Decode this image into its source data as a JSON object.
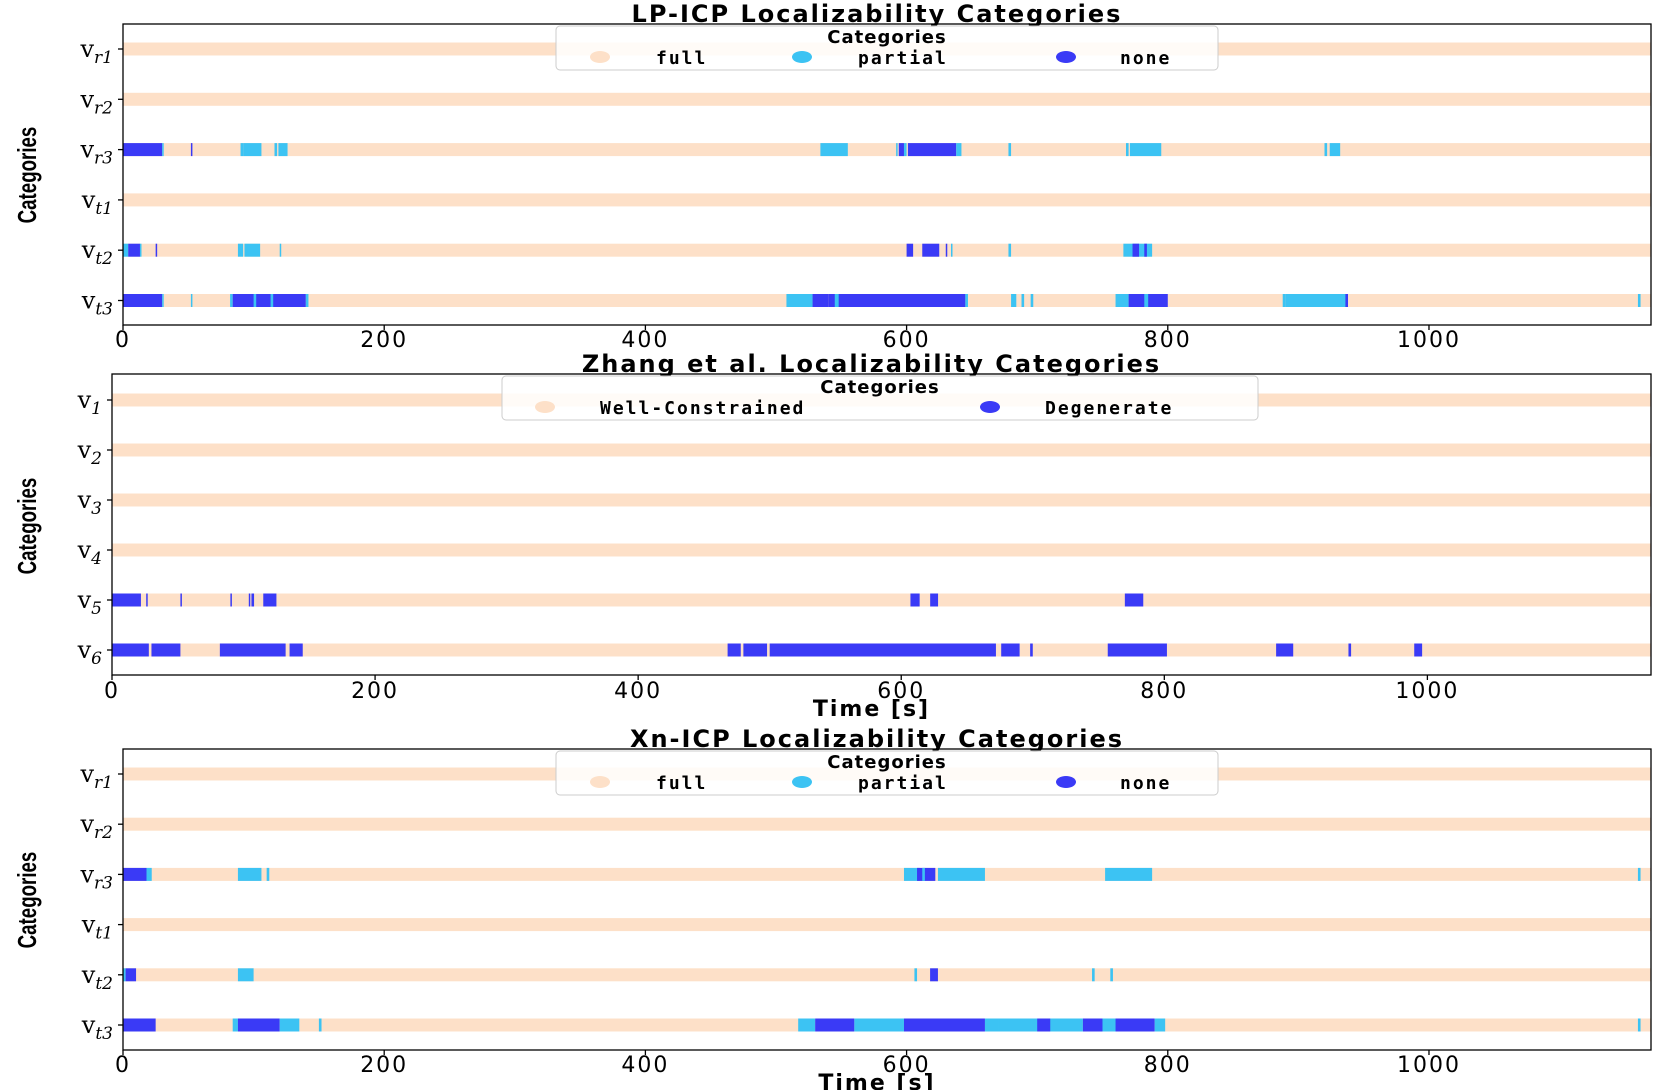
{
  "colors": {
    "full": "#fde0c8",
    "partial": "#3cc3f3",
    "none": "#3a3af6",
    "axis": "#000000",
    "legend_border": "#cccccc"
  },
  "chart_data": [
    {
      "type": "broken_barh",
      "title": "LP-ICP Localizability Categories",
      "ylabel": "Categories",
      "xlabel": "",
      "xlim": [
        0,
        1170
      ],
      "xticks": [
        0,
        200,
        400,
        600,
        800,
        1000
      ],
      "categories": [
        {
          "base": "v",
          "sub": "r1"
        },
        {
          "base": "v",
          "sub": "r2"
        },
        {
          "base": "v",
          "sub": "r3"
        },
        {
          "base": "v",
          "sub": "t1"
        },
        {
          "base": "v",
          "sub": "t2"
        },
        {
          "base": "v",
          "sub": "t3"
        }
      ],
      "legend": {
        "title": "Categories",
        "entries": [
          {
            "label": "full",
            "color_key": "full"
          },
          {
            "label": "partial",
            "color_key": "partial"
          },
          {
            "label": "none",
            "color_key": "none"
          }
        ]
      },
      "rows": [
        [],
        [],
        [
          [
            0,
            30,
            "none"
          ],
          [
            30,
            31,
            "partial"
          ],
          [
            52,
            53,
            "none"
          ],
          [
            90,
            92,
            "partial"
          ],
          [
            92,
            106,
            "partial"
          ],
          [
            116,
            118,
            "partial"
          ],
          [
            119,
            126,
            "partial"
          ],
          [
            534,
            555,
            "partial"
          ],
          [
            592,
            593,
            "partial"
          ],
          [
            594,
            598,
            "none"
          ],
          [
            598,
            600,
            "partial"
          ],
          [
            601,
            638,
            "none"
          ],
          [
            638,
            642,
            "partial"
          ],
          [
            678,
            680,
            "partial"
          ],
          [
            768,
            770,
            "partial"
          ],
          [
            771,
            795,
            "partial"
          ],
          [
            920,
            922,
            "partial"
          ],
          [
            924,
            932,
            "partial"
          ]
        ],
        [],
        [
          [
            0,
            4,
            "partial"
          ],
          [
            4,
            13,
            "none"
          ],
          [
            13,
            14,
            "partial"
          ],
          [
            25,
            26,
            "none"
          ],
          [
            88,
            92,
            "partial"
          ],
          [
            93,
            105,
            "partial"
          ],
          [
            120,
            121,
            "partial"
          ],
          [
            600,
            605,
            "none"
          ],
          [
            612,
            625,
            "none"
          ],
          [
            630,
            631,
            "none"
          ],
          [
            634,
            635,
            "partial"
          ],
          [
            678,
            680,
            "partial"
          ],
          [
            766,
            788,
            "partial"
          ],
          [
            773,
            778,
            "none"
          ],
          [
            782,
            784,
            "none"
          ]
        ],
        [
          [
            0,
            30,
            "none"
          ],
          [
            30,
            31,
            "partial"
          ],
          [
            52,
            53,
            "partial"
          ],
          [
            82,
            84,
            "partial"
          ],
          [
            84,
            140,
            "none"
          ],
          [
            100,
            102,
            "partial"
          ],
          [
            113,
            115,
            "partial"
          ],
          [
            140,
            142,
            "partial"
          ],
          [
            508,
            518,
            "partial"
          ],
          [
            518,
            528,
            "partial"
          ],
          [
            528,
            540,
            "none"
          ],
          [
            540,
            645,
            "none"
          ],
          [
            545,
            548,
            "partial"
          ],
          [
            645,
            647,
            "partial"
          ],
          [
            680,
            684,
            "partial"
          ],
          [
            688,
            690,
            "partial"
          ],
          [
            695,
            697,
            "partial"
          ],
          [
            760,
            770,
            "partial"
          ],
          [
            770,
            800,
            "none"
          ],
          [
            782,
            785,
            "partial"
          ],
          [
            888,
            890,
            "partial"
          ],
          [
            890,
            937,
            "partial"
          ],
          [
            936,
            938,
            "none"
          ],
          [
            1160,
            1162,
            "partial"
          ]
        ]
      ]
    },
    {
      "type": "broken_barh",
      "title": "Zhang et al. Localizability Categories",
      "ylabel": "Categories",
      "xlabel": "Time [s]",
      "xlim": [
        0,
        1170
      ],
      "xticks": [
        0,
        200,
        400,
        600,
        800,
        1000
      ],
      "categories": [
        {
          "base": "v",
          "sub": "1"
        },
        {
          "base": "v",
          "sub": "2"
        },
        {
          "base": "v",
          "sub": "3"
        },
        {
          "base": "v",
          "sub": "4"
        },
        {
          "base": "v",
          "sub": "5"
        },
        {
          "base": "v",
          "sub": "6"
        }
      ],
      "legend": {
        "title": "Categories",
        "entries": [
          {
            "label": "Well-Constrained",
            "color_key": "full"
          },
          {
            "label": "Degenerate",
            "color_key": "none"
          }
        ]
      },
      "rows": [
        [],
        [],
        [],
        [],
        [
          [
            0,
            22,
            "none"
          ],
          [
            26,
            27,
            "none"
          ],
          [
            52,
            53,
            "none"
          ],
          [
            90,
            91,
            "none"
          ],
          [
            104,
            105,
            "none"
          ],
          [
            106,
            108,
            "none"
          ],
          [
            115,
            125,
            "none"
          ],
          [
            607,
            614,
            "none"
          ],
          [
            622,
            628,
            "none"
          ],
          [
            770,
            784,
            "none"
          ]
        ],
        [
          [
            0,
            52,
            "none"
          ],
          [
            28,
            30,
            "full"
          ],
          [
            82,
            132,
            "none"
          ],
          [
            135,
            145,
            "none"
          ],
          [
            468,
            478,
            "none"
          ],
          [
            480,
            672,
            "none"
          ],
          [
            498,
            500,
            "full"
          ],
          [
            676,
            690,
            "none"
          ],
          [
            698,
            700,
            "none"
          ],
          [
            757,
            802,
            "none"
          ],
          [
            885,
            898,
            "none"
          ],
          [
            940,
            942,
            "none"
          ],
          [
            990,
            996,
            "none"
          ]
        ]
      ]
    },
    {
      "type": "broken_barh",
      "title": "Xn-ICP Localizability Categories",
      "ylabel": "Categories",
      "xlabel": "Time [s]",
      "xlim": [
        0,
        1170
      ],
      "xticks": [
        0,
        200,
        400,
        600,
        800,
        1000
      ],
      "categories": [
        {
          "base": "v",
          "sub": "r1"
        },
        {
          "base": "v",
          "sub": "r2"
        },
        {
          "base": "v",
          "sub": "r3"
        },
        {
          "base": "v",
          "sub": "t1"
        },
        {
          "base": "v",
          "sub": "t2"
        },
        {
          "base": "v",
          "sub": "t3"
        }
      ],
      "legend": {
        "title": "Categories",
        "entries": [
          {
            "label": "full",
            "color_key": "full"
          },
          {
            "label": "partial",
            "color_key": "partial"
          },
          {
            "label": "none",
            "color_key": "none"
          }
        ]
      },
      "rows": [
        [],
        [],
        [
          [
            0,
            18,
            "none"
          ],
          [
            18,
            22,
            "partial"
          ],
          [
            88,
            106,
            "partial"
          ],
          [
            110,
            112,
            "partial"
          ],
          [
            598,
            610,
            "partial"
          ],
          [
            608,
            622,
            "none"
          ],
          [
            612,
            614,
            "partial"
          ],
          [
            624,
            660,
            "partial"
          ],
          [
            752,
            788,
            "partial"
          ],
          [
            1160,
            1162,
            "partial"
          ]
        ],
        [],
        [
          [
            0,
            2,
            "partial"
          ],
          [
            2,
            10,
            "none"
          ],
          [
            88,
            100,
            "partial"
          ],
          [
            606,
            608,
            "partial"
          ],
          [
            618,
            624,
            "none"
          ],
          [
            742,
            744,
            "partial"
          ],
          [
            756,
            758,
            "partial"
          ]
        ],
        [
          [
            0,
            25,
            "none"
          ],
          [
            84,
            88,
            "partial"
          ],
          [
            88,
            120,
            "none"
          ],
          [
            120,
            135,
            "partial"
          ],
          [
            150,
            152,
            "partial"
          ],
          [
            517,
            530,
            "partial"
          ],
          [
            530,
            560,
            "none"
          ],
          [
            560,
            598,
            "partial"
          ],
          [
            598,
            660,
            "none"
          ],
          [
            660,
            670,
            "partial"
          ],
          [
            670,
            735,
            "partial"
          ],
          [
            700,
            710,
            "none"
          ],
          [
            735,
            790,
            "none"
          ],
          [
            750,
            760,
            "partial"
          ],
          [
            790,
            798,
            "partial"
          ],
          [
            1160,
            1162,
            "partial"
          ]
        ]
      ]
    }
  ]
}
